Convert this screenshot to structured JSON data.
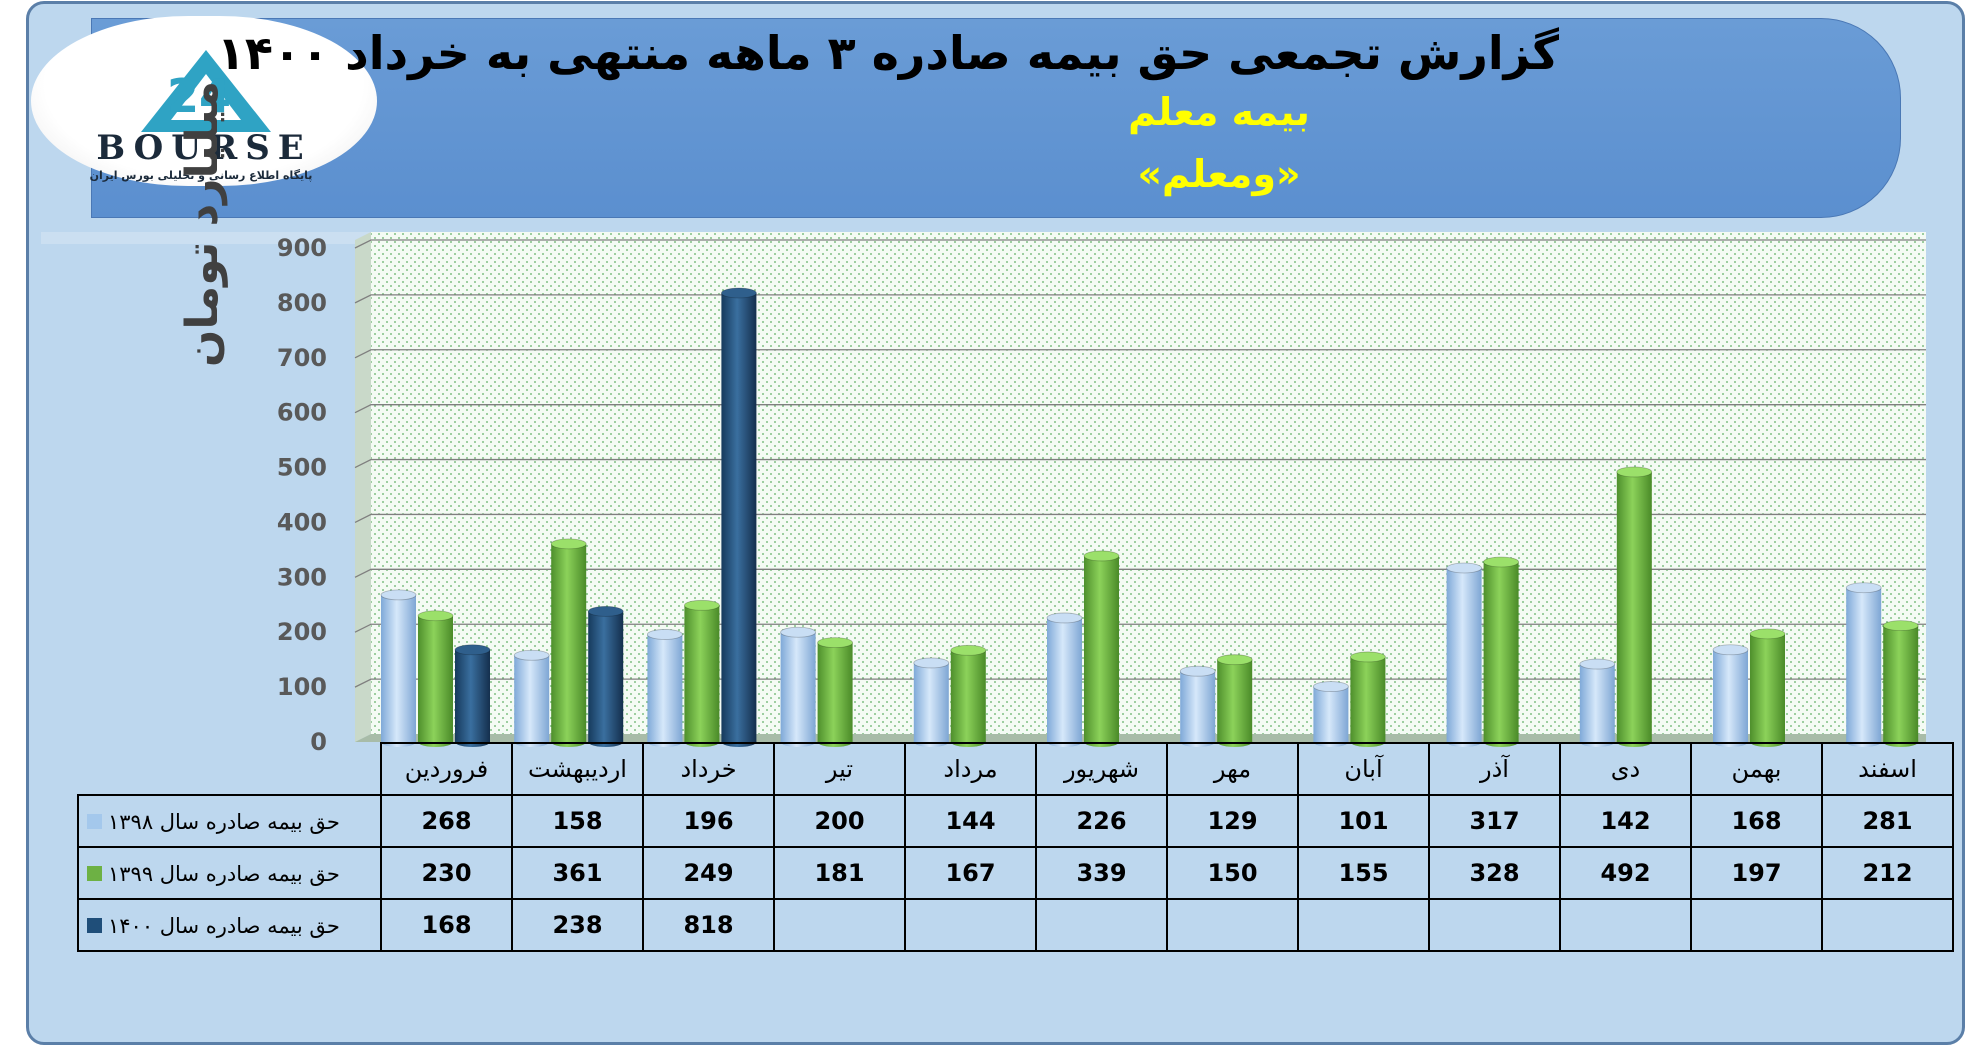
{
  "header": {
    "title": "گزارش تجمعی حق بیمه صادره ۳ ماهه منتهی به خرداد ۱۴۰۰",
    "company": "بیمه معلم",
    "symbol": "«ومعلم»"
  },
  "logo": {
    "wordmark": "BOURSE",
    "number": "24",
    "tagline": "پایگاه اطلاع رسانی و تحلیلی بورس ایران"
  },
  "colors": {
    "series_1398": "#a4c8ec",
    "series_1399": "#6db144",
    "series_1400": "#1f4e79",
    "banner": "#5b8fcf",
    "background": "#bdd7ee",
    "subtitle": "#ffff00"
  },
  "chart_data": {
    "type": "bar",
    "ylabel": "میلیارد تومان",
    "ylim": [
      0,
      900
    ],
    "yticks": [
      0,
      100,
      200,
      300,
      400,
      500,
      600,
      700,
      800,
      900
    ],
    "categories": [
      "فروردین",
      "اردیبهشت",
      "خرداد",
      "تیر",
      "مرداد",
      "شهریور",
      "مهر",
      "آبان",
      "آذر",
      "دی",
      "بهمن",
      "اسفند"
    ],
    "series": [
      {
        "name": "حق بیمه صادره سال ۱۳۹۸",
        "values": [
          268,
          158,
          196,
          200,
          144,
          226,
          129,
          101,
          317,
          142,
          168,
          281
        ]
      },
      {
        "name": "حق بیمه صادره سال ۱۳۹۹",
        "values": [
          230,
          361,
          249,
          181,
          167,
          339,
          150,
          155,
          328,
          492,
          197,
          212
        ]
      },
      {
        "name": "حق بیمه صادره سال ۱۴۰۰",
        "values": [
          168,
          238,
          818,
          null,
          null,
          null,
          null,
          null,
          null,
          null,
          null,
          null
        ]
      }
    ],
    "grid": true,
    "legend": "data-table"
  }
}
